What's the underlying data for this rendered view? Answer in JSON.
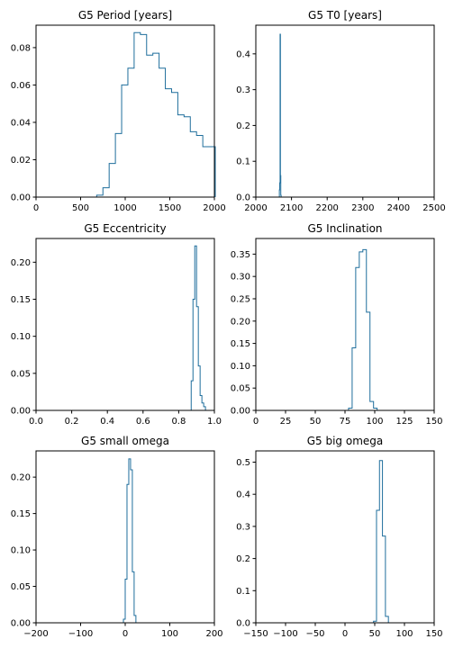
{
  "figure": {
    "line_color": "#1f6e9c",
    "axis_color": "#000000",
    "background": "#ffffff"
  },
  "chart_data": [
    {
      "type": "histogram",
      "title": "G5 Period [years]",
      "xlim": [
        0,
        2000
      ],
      "ylim": [
        0,
        0.092
      ],
      "xticks": [
        0,
        500,
        1000,
        1500,
        2000
      ],
      "xtick_labels": [
        "0",
        "500",
        "1000",
        "1500",
        "2000"
      ],
      "yticks": [
        0,
        0.02,
        0.04,
        0.06,
        0.08
      ],
      "ytick_labels": [
        "0.00",
        "0.02",
        "0.04",
        "0.06",
        "0.08"
      ],
      "bin_edges": [
        680,
        750,
        820,
        890,
        960,
        1030,
        1100,
        1170,
        1240,
        1310,
        1380,
        1450,
        1520,
        1590,
        1660,
        1730,
        1800,
        1870,
        1940,
        2010
      ],
      "values": [
        0.001,
        0.005,
        0.018,
        0.034,
        0.06,
        0.069,
        0.088,
        0.087,
        0.076,
        0.077,
        0.069,
        0.058,
        0.056,
        0.044,
        0.043,
        0.035,
        0.033,
        0.027,
        0.027
      ],
      "grid": false,
      "histtype": "step"
    },
    {
      "type": "histogram",
      "title": "G5 T0 [years]",
      "xlim": [
        2000,
        2500
      ],
      "ylim": [
        0,
        0.48
      ],
      "xticks": [
        2000,
        2100,
        2200,
        2300,
        2400,
        2500
      ],
      "xtick_labels": [
        "2000",
        "2100",
        "2200",
        "2300",
        "2400",
        "2500"
      ],
      "yticks": [
        0,
        0.1,
        0.2,
        0.3,
        0.4
      ],
      "ytick_labels": [
        "0.0",
        "0.1",
        "0.2",
        "0.3",
        "0.4"
      ],
      "bin_edges": [
        2066,
        2067,
        2068,
        2069,
        2070,
        2071
      ],
      "values": [
        0.02,
        0.04,
        0.455,
        0.06,
        0.005
      ],
      "grid": false,
      "histtype": "step"
    },
    {
      "type": "histogram",
      "title": "G5 Eccentricity",
      "xlim": [
        0,
        1.0
      ],
      "ylim": [
        0,
        0.232
      ],
      "xticks": [
        0,
        0.2,
        0.4,
        0.6,
        0.8,
        1.0
      ],
      "xtick_labels": [
        "0.0",
        "0.2",
        "0.4",
        "0.6",
        "0.8",
        "1.0"
      ],
      "yticks": [
        0,
        0.05,
        0.1,
        0.15,
        0.2
      ],
      "ytick_labels": [
        "0.00",
        "0.05",
        "0.10",
        "0.15",
        "0.20"
      ],
      "bin_edges": [
        0.87,
        0.88,
        0.89,
        0.9,
        0.91,
        0.92,
        0.93,
        0.94,
        0.95
      ],
      "values": [
        0.04,
        0.15,
        0.222,
        0.14,
        0.06,
        0.02,
        0.01,
        0.005
      ],
      "grid": false,
      "histtype": "step"
    },
    {
      "type": "histogram",
      "title": "G5 Inclination",
      "xlim": [
        0,
        150
      ],
      "ylim": [
        0,
        0.385
      ],
      "xticks": [
        0,
        25,
        50,
        75,
        100,
        125,
        150
      ],
      "xtick_labels": [
        "0",
        "25",
        "50",
        "75",
        "100",
        "125",
        "150"
      ],
      "yticks": [
        0,
        0.05,
        0.1,
        0.15,
        0.2,
        0.25,
        0.3,
        0.35
      ],
      "ytick_labels": [
        "0.00",
        "0.05",
        "0.10",
        "0.15",
        "0.20",
        "0.25",
        "0.30",
        "0.35"
      ],
      "bin_edges": [
        78,
        81,
        84,
        87,
        90,
        93,
        96,
        99,
        102
      ],
      "values": [
        0.005,
        0.14,
        0.32,
        0.355,
        0.36,
        0.22,
        0.02,
        0.005
      ],
      "grid": false,
      "histtype": "step"
    },
    {
      "type": "histogram",
      "title": "G5 small omega",
      "xlim": [
        -200,
        200
      ],
      "ylim": [
        0,
        0.236
      ],
      "xticks": [
        -200,
        -100,
        0,
        100,
        200
      ],
      "xtick_labels": [
        "−200",
        "−100",
        "0",
        "100",
        "200"
      ],
      "yticks": [
        0,
        0.05,
        0.1,
        0.15,
        0.2
      ],
      "ytick_labels": [
        "0.00",
        "0.05",
        "0.10",
        "0.15",
        "0.20"
      ],
      "bin_edges": [
        -4,
        0,
        4,
        8,
        12,
        16,
        20,
        24
      ],
      "values": [
        0.005,
        0.06,
        0.19,
        0.225,
        0.21,
        0.07,
        0.01
      ],
      "grid": false,
      "histtype": "step"
    },
    {
      "type": "histogram",
      "title": "G5 big omega",
      "xlim": [
        -150,
        150
      ],
      "ylim": [
        0,
        0.535
      ],
      "xticks": [
        -150,
        -100,
        -50,
        0,
        50,
        100,
        150
      ],
      "xtick_labels": [
        "−150",
        "−100",
        "−50",
        "0",
        "50",
        "100",
        "150"
      ],
      "yticks": [
        0,
        0.1,
        0.2,
        0.3,
        0.4,
        0.5
      ],
      "ytick_labels": [
        "0.0",
        "0.1",
        "0.2",
        "0.3",
        "0.4",
        "0.5"
      ],
      "bin_edges": [
        48,
        53,
        58,
        63,
        68,
        73
      ],
      "values": [
        0.005,
        0.35,
        0.505,
        0.27,
        0.02
      ],
      "grid": false,
      "histtype": "step"
    }
  ]
}
